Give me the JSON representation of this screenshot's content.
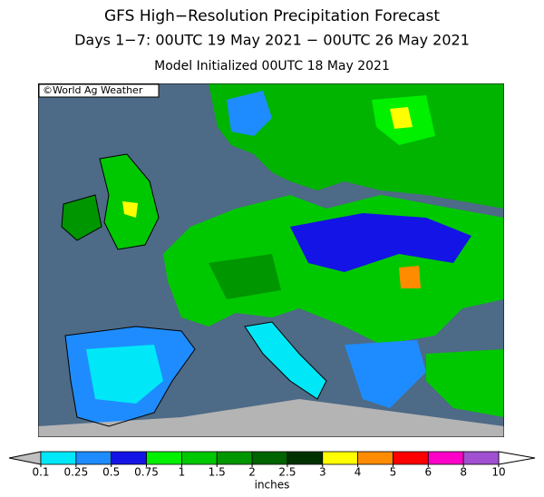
{
  "title": "GFS High−Resolution Precipitation Forecast",
  "subtitle": "Days 1−7: 00UTC 19 May 2021 − 00UTC 26 May 2021",
  "init": "Model Initialized 00UTC 18 May 2021",
  "credit": "©World Ag Weather",
  "colorbar": {
    "ticks": [
      0.1,
      0.25,
      0.5,
      0.75,
      1,
      1.5,
      2,
      2.5,
      3,
      4,
      5,
      6,
      8,
      10
    ],
    "colors": [
      "#00e8f8",
      "#1e8cff",
      "#1414e6",
      "#00f000",
      "#00c800",
      "#009600",
      "#006400",
      "#003200",
      "#ffff00",
      "#ff8c00",
      "#ff0000",
      "#ff00c8",
      "#a050d0"
    ],
    "under_color": "#c0c0c0",
    "over_color": "#ffffff",
    "label": "inches"
  }
}
